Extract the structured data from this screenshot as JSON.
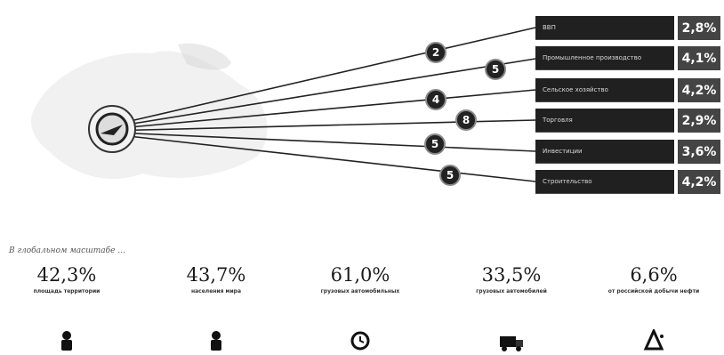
{
  "rows": [
    {
      "label": "ВВП",
      "value": "2,8%",
      "badge": "2"
    },
    {
      "label": "Промышленное производство",
      "value": "4,1%",
      "badge": "5"
    },
    {
      "label": "Сельское хозяйство",
      "value": "4,2%",
      "badge": "4"
    },
    {
      "label": "Торговля",
      "value": "2,9%",
      "badge": "8"
    },
    {
      "label": "Инвестиции",
      "value": "3,6%",
      "badge": "5"
    },
    {
      "label": "Строительство",
      "value": "4,2%",
      "badge": "5"
    }
  ],
  "section_title": "В глобальном масштабе …",
  "stats": [
    {
      "value": "42,3%",
      "caption": "площадь территории",
      "icon": "person-icon"
    },
    {
      "value": "43,7%",
      "caption": "населения мира",
      "icon": "person-icon"
    },
    {
      "value": "61,0%",
      "caption": "грузовых автомобильных",
      "icon": "clock-icon"
    },
    {
      "value": "33,5%",
      "caption": "грузовых автомобилей",
      "icon": "truck-icon"
    },
    {
      "value": "6,6%",
      "caption": "от российской добычи нефти",
      "icon": "oil-drop-icon"
    }
  ],
  "colors": {
    "dark_panel": "#202020",
    "value_panel": "#444444"
  }
}
